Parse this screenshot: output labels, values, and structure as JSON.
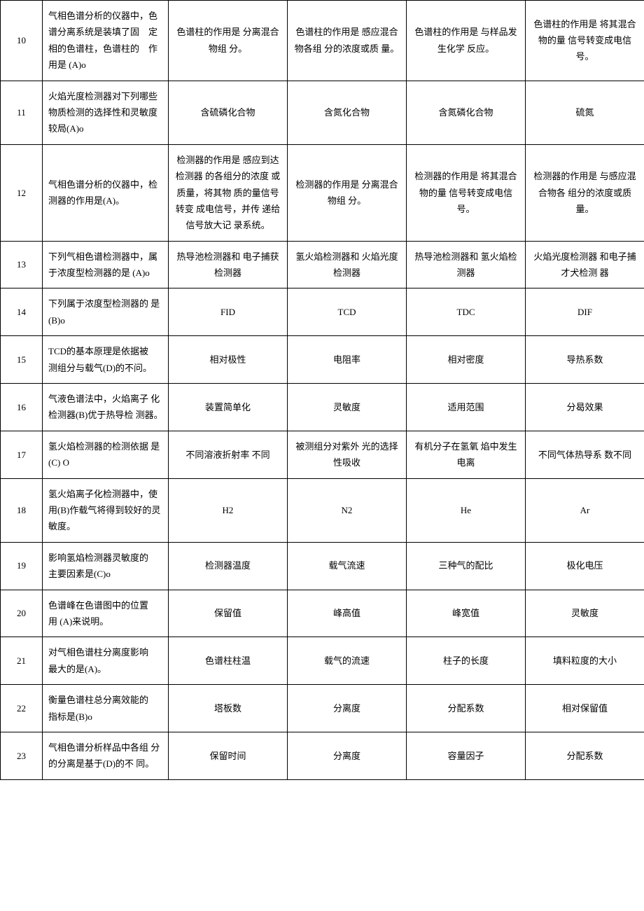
{
  "rows": [
    {
      "num": "10",
      "question": "气相色谱分析的仪器中，色谱分离系统是装填了固　定相的色谱柱，色谱柱的　作用是 (A)o",
      "a": "色谱柱的作用是 分离混合物组 分。",
      "b": "色谱柱的作用是 感应混合物各组 分的浓度或质 量。",
      "c": "色谱柱的作用是 与样品发生化学 反应。",
      "d": "色谱柱的作用是 将其混合物的量 信号转变成电信 号。"
    },
    {
      "num": "11",
      "question": "火焰光度检测器对下列哪些物质检测的选择性和灵敏度较局(A)o",
      "a": "含硫磷化合物",
      "b": "含氮化合物",
      "c": "含氮磷化合物",
      "d": "硫氮"
    },
    {
      "num": "12",
      "question": "气相色谱分析的仪器中，检测器的作用是(A)。",
      "a": "检测器的作用是 感应到达检测器 的各组分的浓度 或质量，将其物 质的量信号转变 成电信号，并传 递给信号放大记 录系统。",
      "b": "检测器的作用是 分离混合物组 分。",
      "c": "检测器的作用是 将其混合物的量 信号转变成电信 号。",
      "d": "检测器的作用是 与感应混合物各 组分的浓度或质 量。"
    },
    {
      "num": "13",
      "question": "下列气相色谱检测器中，属于浓度型检测器的是 (A)o",
      "a": "热导池检测器和 电子捕获检测器",
      "b": "氢火焰检测器和 火焰光度检测器",
      "c": "热导池检测器和 氢火焰检测器",
      "d": "火焰光度检测器 和电子捕才犬检测 器"
    },
    {
      "num": "14",
      "question": "下列属于浓度型检测器的 是(B)o",
      "a": "FID",
      "b": "TCD",
      "c": "TDC",
      "d": "DIF"
    },
    {
      "num": "15",
      "question": "TCD的基本原理是依据被　测组分与载气(D)的不问。",
      "a": "相对极性",
      "b": "电阻率",
      "c": "相对密度",
      "d": "导热系数"
    },
    {
      "num": "16",
      "question": "气液色谱法中，火焰离子 化检测器(B)优于热导检 测器。",
      "a": "装置简单化",
      "b": "灵敏度",
      "c": "适用范围",
      "d": "分曷效果"
    },
    {
      "num": "17",
      "question": "氢火焰检测器的检测依据 是(C) O",
      "a": "不同溶液折射率 不同",
      "b": "被测组分对紫外 光的选择性吸收",
      "c": "有机分子在氢氧 焰中发生电离",
      "d": "不同气体热导系 数不同"
    },
    {
      "num": "18",
      "question": "氢火焰离子化检测器中，使用(B)作载气将得到较好的灵敏度。",
      "a": "H2",
      "b": "N2",
      "c": "He",
      "d": "Ar"
    },
    {
      "num": "19",
      "question": "影响氢焰检测器灵敏度的　主要因素是(C)o",
      "a": "检测器温度",
      "b": "载气流速",
      "c": "三种气的配比",
      "d": "极化电压"
    },
    {
      "num": "20",
      "question": "色谱峰在色谱图中的位置　用 (A)来说明。",
      "a": "保留值",
      "b": "峰高值",
      "c": "峰宽值",
      "d": "灵敏度"
    },
    {
      "num": "21",
      "question": "对气相色谱柱分离度影响　最大的是(A)。",
      "a": "色谱柱柱温",
      "b": "载气的流速",
      "c": "柱子的长度",
      "d": "填料粒度的大小"
    },
    {
      "num": "22",
      "question": "衡量色谱柱总分离效能的　指标是(B)o",
      "a": "塔板数",
      "b": "分离度",
      "c": "分配系数",
      "d": "相对保留值"
    },
    {
      "num": "23",
      "question": "气相色谱分析样品中各组 分的分离是基于(D)的不 同。",
      "a": "保留时间",
      "b": "分离度",
      "c": "容量因子",
      "d": "分配系数"
    }
  ]
}
